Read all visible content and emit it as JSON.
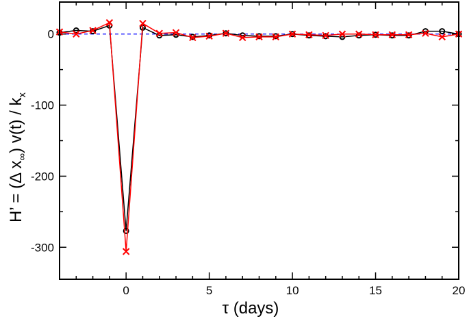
{
  "chart_data": {
    "type": "line",
    "xlabel": "τ (days)",
    "ylabel": {
      "base": "H’ = (Δ x",
      "sub": "∞",
      "mid": ")  v(t) / k",
      "sub2": "x"
    },
    "xlim": [
      -4,
      20
    ],
    "ylim": [
      -345,
      45
    ],
    "xticks": [
      0,
      5,
      10,
      15,
      20
    ],
    "yticks": [
      0,
      -100,
      -200,
      -300
    ],
    "xtick_labels": [
      "0",
      "5",
      "10",
      "15",
      "20"
    ],
    "ytick_labels": [
      "0",
      "-100",
      "-200",
      "-300"
    ],
    "reference_line": {
      "y": 0,
      "color": "#0000ff",
      "style": "dashed"
    },
    "grid": false,
    "series": [
      {
        "color": "#000000",
        "marker": "circle",
        "x": [
          -4,
          -3,
          -2,
          -1,
          0,
          1,
          2,
          3,
          4,
          5,
          6,
          7,
          8,
          9,
          10,
          11,
          12,
          13,
          14,
          15,
          16,
          17,
          18,
          19,
          20
        ],
        "y": [
          2,
          5,
          4,
          12,
          -277,
          9,
          -2,
          -1,
          -4,
          -2,
          1,
          -2,
          -3,
          -3,
          0,
          -2,
          -3,
          -4,
          -2,
          -1,
          -2,
          -2,
          4,
          4,
          0
        ]
      },
      {
        "color": "#ff0000",
        "marker": "x",
        "x": [
          -4,
          -3,
          -2,
          -1,
          0,
          1,
          2,
          3,
          4,
          5,
          6,
          7,
          8,
          9,
          10,
          11,
          12,
          13,
          14,
          15,
          16,
          17,
          18,
          19,
          20
        ],
        "y": [
          3,
          0,
          5,
          16,
          -306,
          15,
          1,
          2,
          -5,
          -3,
          1,
          -5,
          -4,
          -4,
          0,
          -1,
          -2,
          0,
          0,
          -1,
          -1,
          -1,
          1,
          -4,
          0
        ]
      }
    ]
  }
}
